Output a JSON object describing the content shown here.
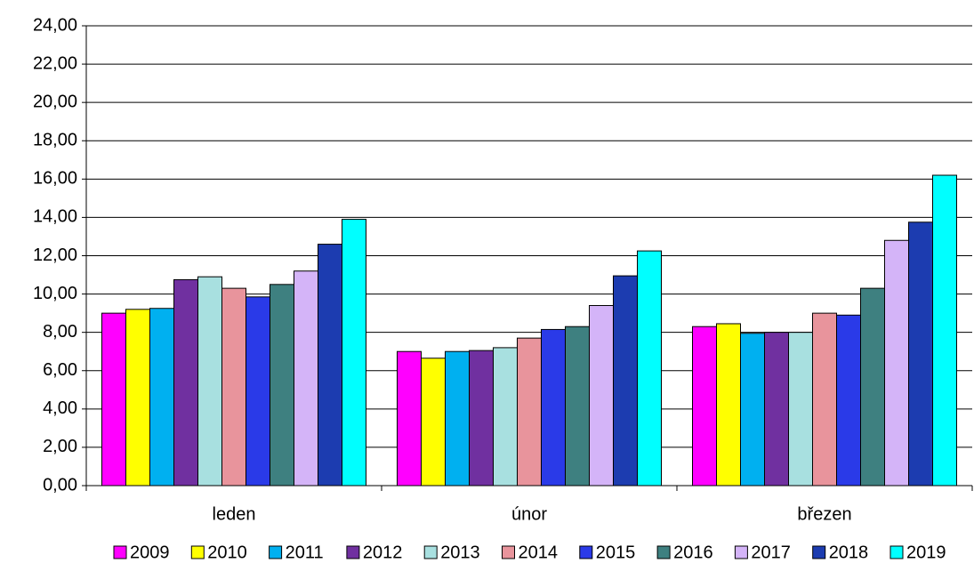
{
  "chart_data": {
    "type": "bar",
    "categories": [
      "leden",
      "únor",
      "březen"
    ],
    "series": [
      {
        "name": "2009",
        "color": "#ff00ff",
        "values": [
          9.0,
          7.0,
          8.3
        ]
      },
      {
        "name": "2010",
        "color": "#ffff00",
        "values": [
          9.2,
          6.65,
          8.45
        ]
      },
      {
        "name": "2011",
        "color": "#00b0f0",
        "values": [
          9.25,
          7.0,
          7.95
        ]
      },
      {
        "name": "2012",
        "color": "#7030a0",
        "values": [
          10.75,
          7.05,
          8.0
        ]
      },
      {
        "name": "2013",
        "color": "#a8e0e0",
        "values": [
          10.9,
          7.2,
          8.0
        ]
      },
      {
        "name": "2014",
        "color": "#e8949c",
        "values": [
          10.3,
          7.7,
          9.0
        ]
      },
      {
        "name": "2015",
        "color": "#2a3ae8",
        "values": [
          9.85,
          8.15,
          8.9
        ]
      },
      {
        "name": "2016",
        "color": "#3e8080",
        "values": [
          10.5,
          8.3,
          10.3
        ]
      },
      {
        "name": "2017",
        "color": "#d4b4f8",
        "values": [
          11.2,
          9.4,
          12.8
        ]
      },
      {
        "name": "2018",
        "color": "#1c3cb0",
        "values": [
          12.6,
          10.95,
          13.75
        ]
      },
      {
        "name": "2019",
        "color": "#00ffff",
        "values": [
          13.9,
          12.25,
          16.2
        ]
      }
    ],
    "ylim": [
      0,
      24
    ],
    "yticks": [
      {
        "value": 0,
        "label": "0,00"
      },
      {
        "value": 2,
        "label": "2,00"
      },
      {
        "value": 4,
        "label": "4,00"
      },
      {
        "value": 6,
        "label": "6,00"
      },
      {
        "value": 8,
        "label": "8,00"
      },
      {
        "value": 10,
        "label": "10,00"
      },
      {
        "value": 12,
        "label": "12,00"
      },
      {
        "value": 14,
        "label": "14,00"
      },
      {
        "value": 16,
        "label": "16,00"
      },
      {
        "value": 18,
        "label": "18,00"
      },
      {
        "value": 20,
        "label": "20,00"
      },
      {
        "value": 22,
        "label": "22,00"
      },
      {
        "value": 24,
        "label": "24,00"
      }
    ],
    "grid": true,
    "legend": "bottom"
  }
}
